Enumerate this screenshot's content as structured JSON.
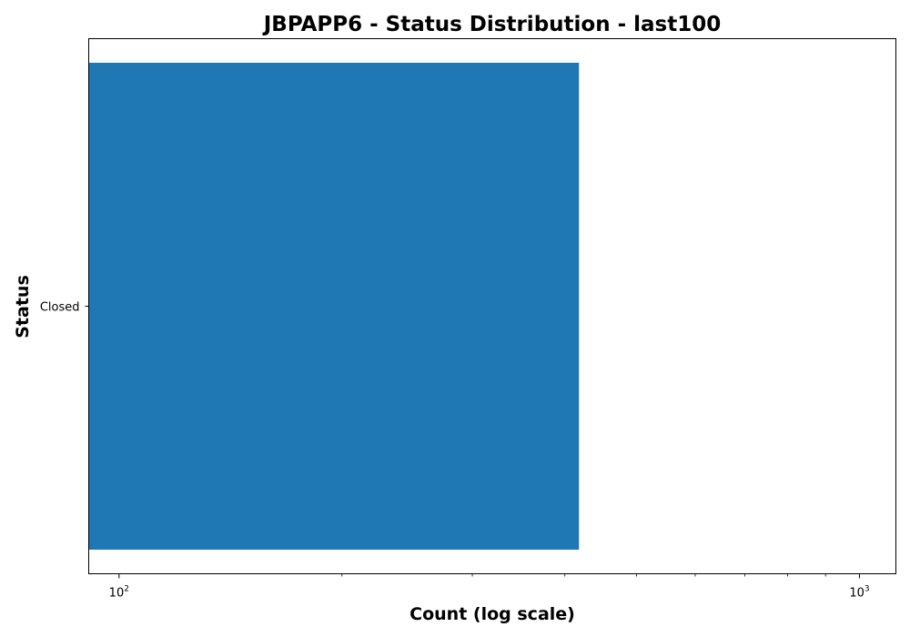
{
  "chart_data": {
    "type": "bar",
    "orientation": "horizontal",
    "title": "JBPAPP6 - Status Distribution - last100",
    "xlabel": "Count (log scale)",
    "ylabel": "Status",
    "x_scale": "log",
    "xlim": [
      91,
      1120
    ],
    "categories": [
      "Closed"
    ],
    "values": [
      418
    ],
    "bar_color": "#1f77b4",
    "x_major_ticks": [
      {
        "base": "10",
        "exp": "2",
        "value": 100
      },
      {
        "base": "10",
        "exp": "3",
        "value": 1000
      }
    ],
    "x_minor_ticks": [
      200,
      300,
      400,
      500,
      600,
      700,
      800,
      900
    ],
    "grid": false,
    "legend": "none"
  }
}
